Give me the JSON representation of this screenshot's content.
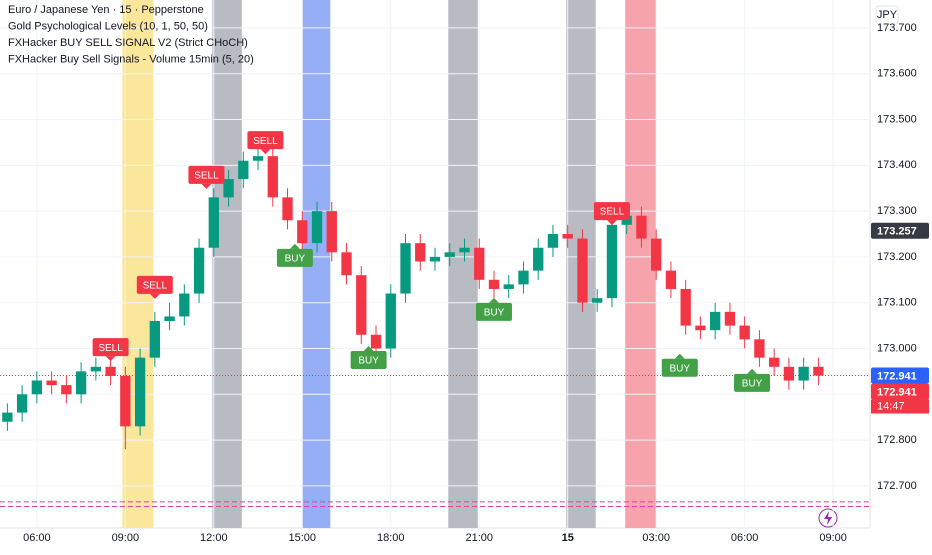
{
  "chart_data": {
    "type": "candlestick",
    "legend_lines": [
      "Euro / Japanese Yen · 15 · Pepperstone",
      "Gold Psychological Levels (10, 1, 50, 50)",
      "FXHacker BUY SELL SIGNAL V2 (Strict CHoCH)",
      "FXHacker Buy Sell Signals - Volume 15min (5, 20)"
    ],
    "currency": "JPY",
    "up_color": "#089981",
    "down_color": "#f23645",
    "open": [
      172.84,
      172.86,
      172.9,
      172.93,
      172.92,
      172.9,
      172.95,
      172.96,
      172.94,
      172.83,
      172.98,
      173.06,
      173.07,
      173.12,
      173.22,
      173.33,
      173.37,
      173.41,
      173.42,
      173.33,
      173.28,
      173.23,
      173.3,
      173.21,
      173.16,
      173.03,
      173.0,
      173.12,
      173.23,
      173.19,
      173.2,
      173.21,
      173.22,
      173.15,
      173.13,
      173.14,
      173.17,
      173.22,
      173.25,
      173.24,
      173.1,
      173.11,
      173.27,
      173.29,
      173.24,
      173.17,
      173.13,
      173.05,
      173.04,
      173.08,
      173.05,
      173.02,
      172.98,
      172.96,
      172.93,
      172.96
    ],
    "high": [
      172.88,
      172.92,
      172.95,
      172.95,
      172.94,
      172.97,
      172.98,
      172.98,
      172.96,
      173.0,
      173.08,
      173.1,
      173.14,
      173.24,
      173.35,
      173.39,
      173.43,
      173.44,
      173.44,
      173.35,
      173.3,
      173.32,
      173.32,
      173.23,
      173.18,
      173.05,
      173.14,
      173.25,
      173.25,
      173.22,
      173.23,
      173.24,
      173.24,
      173.17,
      173.16,
      173.19,
      173.24,
      173.27,
      173.27,
      173.26,
      173.13,
      173.29,
      173.31,
      173.31,
      173.26,
      173.19,
      173.15,
      173.07,
      173.1,
      173.1,
      173.07,
      173.04,
      173.0,
      172.98,
      172.98,
      172.98
    ],
    "low": [
      172.82,
      172.84,
      172.88,
      172.9,
      172.88,
      172.88,
      172.93,
      172.92,
      172.78,
      172.81,
      172.96,
      173.04,
      173.05,
      173.1,
      173.2,
      173.31,
      173.35,
      173.39,
      173.31,
      173.26,
      173.21,
      173.21,
      173.19,
      173.14,
      173.01,
      172.98,
      172.98,
      173.1,
      173.17,
      173.17,
      173.18,
      173.19,
      173.13,
      173.11,
      173.11,
      173.12,
      173.15,
      173.2,
      173.22,
      173.08,
      173.08,
      173.09,
      173.25,
      173.22,
      173.15,
      173.11,
      173.03,
      173.02,
      173.02,
      173.03,
      173.0,
      172.96,
      172.94,
      172.91,
      172.91,
      172.92
    ],
    "close": [
      172.86,
      172.9,
      172.93,
      172.92,
      172.9,
      172.95,
      172.96,
      172.94,
      172.83,
      172.98,
      173.06,
      173.07,
      173.12,
      173.22,
      173.33,
      173.37,
      173.41,
      173.42,
      173.33,
      173.28,
      173.23,
      173.3,
      173.21,
      173.16,
      173.03,
      173.0,
      173.12,
      173.23,
      173.19,
      173.2,
      173.21,
      173.22,
      173.15,
      173.13,
      173.14,
      173.17,
      173.22,
      173.25,
      173.24,
      173.1,
      173.11,
      173.27,
      173.29,
      173.24,
      173.17,
      173.13,
      173.05,
      173.04,
      173.08,
      173.05,
      173.02,
      172.98,
      172.96,
      172.93,
      172.96,
      172.941
    ],
    "xlim": [
      -0.5,
      58.5
    ],
    "xticks": [
      {
        "value": 2,
        "label": "06:00"
      },
      {
        "value": 8,
        "label": "09:00"
      },
      {
        "value": 14,
        "label": "12:00"
      },
      {
        "value": 20,
        "label": "15:00"
      },
      {
        "value": 26,
        "label": "18:00"
      },
      {
        "value": 32,
        "label": "21:00"
      },
      {
        "value": 38,
        "label": "15",
        "bold": true
      },
      {
        "value": 44,
        "label": "03:00"
      },
      {
        "value": 50,
        "label": "06:00"
      },
      {
        "value": 56,
        "label": "09:00"
      }
    ],
    "ylim": [
      172.608,
      173.761
    ],
    "yticks": [
      {
        "value": 172.7,
        "label": "172.700"
      },
      {
        "value": 172.8,
        "label": "172.800"
      },
      {
        "value": 172.9,
        "label": "172.900"
      },
      {
        "value": 173.0,
        "label": "173.000"
      },
      {
        "value": 173.1,
        "label": "173.100"
      },
      {
        "value": 173.2,
        "label": "173.200"
      },
      {
        "value": 173.3,
        "label": "173.300"
      },
      {
        "value": 173.4,
        "label": "173.400"
      },
      {
        "value": 173.5,
        "label": "173.500"
      },
      {
        "value": 173.6,
        "label": "173.600"
      },
      {
        "value": 173.7,
        "label": "173.700"
      }
    ],
    "grid": true,
    "bands": [
      {
        "from": 7.8,
        "to": 9.9,
        "color": "#fbe79b"
      },
      {
        "from": 13.9,
        "to": 15.9,
        "color": "#b9bbc2"
      },
      {
        "from": 20.0,
        "to": 21.9,
        "color": "#95aef5"
      },
      {
        "from": 29.9,
        "to": 31.9,
        "color": "#b9bbc2"
      },
      {
        "from": 37.9,
        "to": 39.9,
        "color": "#b9bbc2"
      },
      {
        "from": 41.9,
        "to": 44.0,
        "color": "#f7a3ab"
      }
    ],
    "signal_colors": {
      "SELL": "#f23645",
      "BUY": "#43a047"
    },
    "signals": [
      {
        "label": "SELL",
        "x": 7,
        "price": 173.003
      },
      {
        "label": "SELL",
        "x": 10,
        "price": 173.139
      },
      {
        "label": "SELL",
        "x": 13.5,
        "price": 173.379
      },
      {
        "label": "SELL",
        "x": 17.5,
        "price": 173.455
      },
      {
        "label": "BUY",
        "x": 19.5,
        "price": 173.198
      },
      {
        "label": "BUY",
        "x": 24.5,
        "price": 172.975
      },
      {
        "label": "BUY",
        "x": 33,
        "price": 173.08
      },
      {
        "label": "SELL",
        "x": 41,
        "price": 173.3
      },
      {
        "label": "BUY",
        "x": 45.6,
        "price": 172.958
      },
      {
        "label": "BUY",
        "x": 50.5,
        "price": 172.925
      }
    ],
    "level_lines": [
      172.665,
      172.655
    ],
    "level_tag": 173.257,
    "last_price": 172.941,
    "countdown": "14:47"
  }
}
